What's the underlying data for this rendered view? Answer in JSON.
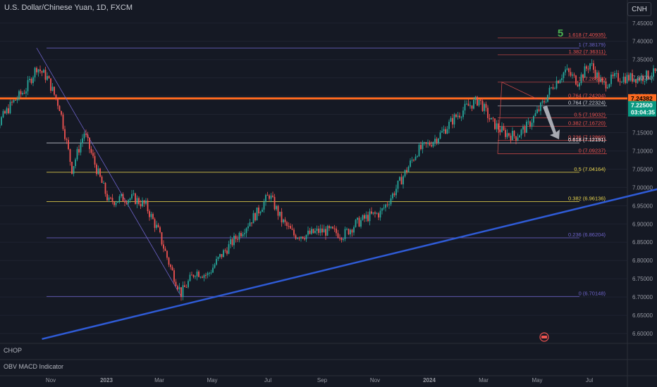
{
  "header": {
    "title": "U.S. Dollar/Chinese Yuan, 1D, FXCM",
    "currency_button": "CNH"
  },
  "panes": {
    "chop_label": "CHOP",
    "obv_label": "OBV MACD Indicator"
  },
  "colors": {
    "background": "#151924",
    "up": "#26a69a",
    "down": "#ef5350",
    "trendline": "#2f5bd6",
    "resistance": "#ff6a1f",
    "fib_red": "#ef5350",
    "fib_yellow": "#e8d44d",
    "fib_purple": "#6d63c9",
    "current_price_tag": "#089981"
  },
  "chart_data": {
    "type": "candlestick",
    "title": "U.S. Dollar/Chinese Yuan, 1D, FXCM",
    "y_axis": {
      "ylim": [
        6.575,
        7.465
      ],
      "ticks": [
        "7.45000",
        "7.40000",
        "7.35000",
        "7.30000",
        "7.25000",
        "7.20000",
        "7.15000",
        "7.10000",
        "7.05000",
        "7.00000",
        "6.95000",
        "6.90000",
        "6.85000",
        "6.80000",
        "6.75000",
        "6.70000",
        "6.65000",
        "6.60000"
      ]
    },
    "x_axis": {
      "ticks": [
        "Nov",
        "2023",
        "Mar",
        "May",
        "Jul",
        "Sep",
        "Nov",
        "2024",
        "Mar",
        "May",
        "Jul"
      ]
    },
    "close_path": [
      [
        "2022-09-26",
        7.12
      ],
      [
        "2022-10-05",
        7.18
      ],
      [
        "2022-10-12",
        7.23
      ],
      [
        "2022-10-20",
        7.27
      ],
      [
        "2022-10-26",
        7.33
      ],
      [
        "2022-11-01",
        7.3
      ],
      [
        "2022-11-08",
        7.22
      ],
      [
        "2022-11-15",
        7.05
      ],
      [
        "2022-11-22",
        7.15
      ],
      [
        "2022-11-29",
        7.05
      ],
      [
        "2022-12-06",
        6.96
      ],
      [
        "2022-12-13",
        6.97
      ],
      [
        "2022-12-20",
        6.97
      ],
      [
        "2022-12-27",
        6.95
      ],
      [
        "2023-01-03",
        6.88
      ],
      [
        "2023-01-10",
        6.78
      ],
      [
        "2023-01-16",
        6.71
      ],
      [
        "2023-01-24",
        6.77
      ],
      [
        "2023-01-31",
        6.76
      ],
      [
        "2023-02-07",
        6.81
      ],
      [
        "2023-02-14",
        6.85
      ],
      [
        "2023-02-21",
        6.89
      ],
      [
        "2023-02-28",
        6.93
      ],
      [
        "2023-03-07",
        6.98
      ],
      [
        "2023-03-14",
        6.91
      ],
      [
        "2023-03-21",
        6.87
      ],
      [
        "2023-03-28",
        6.87
      ],
      [
        "2023-04-04",
        6.88
      ],
      [
        "2023-04-11",
        6.88
      ],
      [
        "2023-04-18",
        6.87
      ],
      [
        "2023-04-25",
        6.9
      ],
      [
        "2023-05-02",
        6.92
      ],
      [
        "2023-05-09",
        6.93
      ],
      [
        "2023-05-16",
        6.98
      ],
      [
        "2023-05-23",
        7.04
      ],
      [
        "2023-05-30",
        7.1
      ],
      [
        "2023-06-06",
        7.12
      ],
      [
        "2023-06-13",
        7.15
      ],
      [
        "2023-06-20",
        7.19
      ],
      [
        "2023-06-27",
        7.22
      ],
      [
        "2023-07-04",
        7.24
      ],
      [
        "2023-07-11",
        7.18
      ],
      [
        "2023-07-18",
        7.15
      ],
      [
        "2023-07-25",
        7.14
      ],
      [
        "2023-08-01",
        7.17
      ],
      [
        "2023-08-08",
        7.22
      ],
      [
        "2023-08-15",
        7.28
      ],
      [
        "2023-08-22",
        7.32
      ],
      [
        "2023-08-29",
        7.29
      ],
      [
        "2023-09-05",
        7.34
      ],
      [
        "2023-09-12",
        7.28
      ],
      [
        "2023-09-19",
        7.3
      ],
      [
        "2023-09-26",
        7.3
      ],
      [
        "2023-10-03",
        7.3
      ],
      [
        "2023-10-10",
        7.31
      ],
      [
        "2023-10-17",
        7.32
      ],
      [
        "2023-10-24",
        7.32
      ],
      [
        "2023-10-31",
        7.32
      ],
      [
        "2023-11-07",
        7.28
      ],
      [
        "2023-11-14",
        7.25
      ],
      [
        "2023-11-21",
        7.15
      ],
      [
        "2023-11-28",
        7.14
      ],
      [
        "2023-12-05",
        7.13
      ],
      [
        "2023-12-12",
        7.15
      ],
      [
        "2023-12-19",
        7.13
      ],
      [
        "2023-12-26",
        7.12
      ],
      [
        "2024-01-02",
        7.12
      ],
      [
        "2024-01-09",
        7.16
      ],
      [
        "2024-01-16",
        7.19
      ],
      [
        "2024-01-23",
        7.17
      ],
      [
        "2024-01-30",
        7.18
      ],
      [
        "2024-02-06",
        7.2
      ],
      [
        "2024-02-13",
        7.21
      ],
      [
        "2024-02-20",
        7.2
      ],
      [
        "2024-02-27",
        7.2
      ],
      [
        "2024-03-05",
        7.19
      ],
      [
        "2024-03-12",
        7.19
      ],
      [
        "2024-03-19",
        7.23
      ],
      [
        "2024-03-26",
        7.27
      ],
      [
        "2024-04-02",
        7.27
      ],
      [
        "2024-04-09",
        7.26
      ],
      [
        "2024-04-16",
        7.28
      ],
      [
        "2024-04-23",
        7.26
      ],
      [
        "2024-04-30",
        7.24
      ],
      [
        "2024-05-03",
        7.225
      ]
    ],
    "current_prices": [
      {
        "value": 7.24382,
        "label": "7.24382"
      },
      {
        "value": 7.225,
        "label": "7.22500",
        "countdown": "03:04:35"
      }
    ],
    "horizontal_lines": [
      {
        "value": 7.24382,
        "role": "resistance"
      },
      {
        "value": 7.12191,
        "role": "fib",
        "color": "#d1d4dc"
      },
      {
        "value": 7.04164,
        "role": "fib",
        "color": "#e8d44d"
      },
      {
        "value": 6.96136,
        "role": "fib",
        "color": "#e8d44d"
      },
      {
        "value": 6.86204,
        "role": "fib",
        "color": "#6d63c9"
      },
      {
        "value": 6.70148,
        "role": "fib",
        "color": "#6d63c9"
      },
      {
        "value": 7.38179,
        "role": "fib",
        "color": "#6d63c9"
      }
    ],
    "fib_labels_right": [
      {
        "text": "1.618 (7.40935)",
        "value": 7.40935,
        "color": "#ef5350"
      },
      {
        "text": "1 (7.38179)",
        "value": 7.38179,
        "color": "#6d63c9"
      },
      {
        "text": "1.382 (7.36311)",
        "value": 7.36311,
        "color": "#ef5350"
      },
      {
        "text": "1 (7.28828)",
        "value": 7.28828,
        "color": "#ef5350"
      },
      {
        "text": "0.764 (7.24204)",
        "value": 7.24204,
        "color": "#ef5350"
      },
      {
        "text": "0.764 (7.22324)",
        "value": 7.22324,
        "color": "#d1d4dc"
      },
      {
        "text": "0.5 (7.19032)",
        "value": 7.19032,
        "color": "#ef5350"
      },
      {
        "text": "0.382 (7.16720)",
        "value": 7.1672,
        "color": "#ef5350"
      },
      {
        "text": "0.236 (7.12860)",
        "value": 7.1286,
        "color": "#ef5350"
      },
      {
        "text": "0.618 (7.12191)",
        "value": 7.12191,
        "color": "#ffffff"
      },
      {
        "text": "0 (7.09237)",
        "value": 7.09237,
        "color": "#ef5350"
      },
      {
        "text": "0.5 (7.04164)",
        "value": 7.04164,
        "color": "#e8d44d"
      },
      {
        "text": "0.382 (6.96136)",
        "value": 6.96136,
        "color": "#e8d44d"
      },
      {
        "text": "0.236 (6.86204)",
        "value": 6.86204,
        "color": "#6d63c9"
      },
      {
        "text": "0 (6.70148)",
        "value": 6.70148,
        "color": "#6d63c9"
      }
    ],
    "trendline": {
      "start": [
        "2022-10-29",
        6.585
      ],
      "end": [
        "2024-06-20",
        7.29
      ]
    },
    "wave_label": "5"
  }
}
